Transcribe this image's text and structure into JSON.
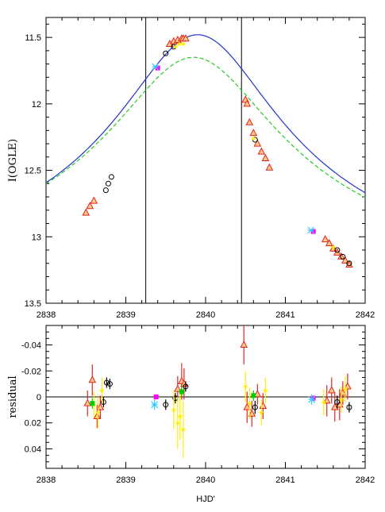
{
  "chart_data": [
    {
      "type": "scatter",
      "ylabel": "I(OGLE)",
      "xlim": [
        2838,
        2842
      ],
      "ylim": [
        13.5,
        11.35
      ],
      "y_inverted": true,
      "xticks": [
        2838,
        2839,
        2840,
        2841,
        2842
      ],
      "xtick_labels": [
        "2838",
        "2839",
        "2840",
        "2841",
        "2842"
      ],
      "yticks": [
        11.5,
        12,
        12.5,
        13,
        13.5
      ],
      "ytick_labels": [
        "11.5",
        "12",
        "12.5",
        "13",
        "13.5"
      ],
      "vertical_lines": [
        2839.25,
        2840.45
      ],
      "curves": [
        {
          "style": "solid",
          "color": "#2233cc",
          "t0": 2839.9,
          "peak": 11.48,
          "width": 0.75,
          "amp": 2.1
        },
        {
          "style": "dashed",
          "color": "#22cc22",
          "t0": 2839.85,
          "peak": 11.65,
          "width": 0.78,
          "amp": 1.88
        }
      ],
      "series": [
        {
          "marker": "triangle",
          "color": "#e52222",
          "x": [
            2838.5,
            2838.55,
            2838.6,
            2839.55,
            2839.6,
            2839.65,
            2839.7,
            2839.72,
            2839.75,
            2840.5,
            2840.52,
            2840.55,
            2840.6,
            2840.65,
            2840.7,
            2840.75,
            2840.8,
            2841.5,
            2841.55,
            2841.6,
            2841.65,
            2841.7,
            2841.75,
            2841.8
          ],
          "y": [
            12.82,
            12.77,
            12.73,
            11.55,
            11.53,
            11.52,
            11.51,
            11.51,
            11.51,
            11.97,
            12.0,
            12.14,
            12.22,
            12.3,
            12.36,
            12.41,
            12.48,
            13.02,
            13.05,
            13.09,
            13.12,
            13.15,
            13.18,
            13.21
          ]
        },
        {
          "marker": "circle",
          "color": "#000000",
          "x": [
            2838.75,
            2838.78,
            2838.82,
            2839.5,
            2839.6,
            2840.62,
            2841.65,
            2841.72,
            2841.8
          ],
          "y": [
            12.65,
            12.6,
            12.55,
            11.62,
            11.57,
            12.27,
            13.1,
            13.15,
            13.2
          ]
        },
        {
          "marker": "star",
          "color": "#ffee00",
          "x": [
            2839.62,
            2839.67,
            2839.72,
            2840.6,
            2841.6
          ],
          "y": [
            11.57,
            11.55,
            11.55,
            12.26,
            13.08
          ]
        },
        {
          "marker": "square",
          "color": "#ff00ff",
          "x": [
            2839.4,
            2841.35
          ],
          "y": [
            11.73,
            12.96
          ]
        },
        {
          "marker": "cross",
          "color": "#33ccff",
          "x": [
            2839.37,
            2841.32
          ],
          "y": [
            11.72,
            12.95
          ]
        }
      ]
    },
    {
      "type": "scatter",
      "ylabel": "residual",
      "xlabel": "HJD'",
      "xlim": [
        2838,
        2842
      ],
      "ylim": [
        0.055,
        -0.055
      ],
      "y_inverted": true,
      "xticks": [
        2838,
        2839,
        2840,
        2841,
        2842
      ],
      "xtick_labels": [
        "2838",
        "2839",
        "2840",
        "2841",
        "2842"
      ],
      "yticks": [
        -0.04,
        -0.02,
        0,
        0.02,
        0.04
      ],
      "ytick_labels": [
        "-0.04",
        "-0.02",
        "0",
        "0.02",
        "0.04"
      ],
      "zero_line": 0,
      "series": [
        {
          "marker": "triangle",
          "color": "#e52222",
          "x": [
            2838.52,
            2838.58,
            2838.64,
            2838.68,
            2839.65,
            2839.7,
            2839.73,
            2840.48,
            2840.52,
            2840.58,
            2840.65,
            2840.72,
            2841.52,
            2841.58,
            2841.62,
            2841.68,
            2841.72,
            2841.78
          ],
          "y": [
            0.005,
            -0.013,
            0.015,
            0.008,
            -0.006,
            -0.012,
            -0.01,
            -0.04,
            0.008,
            0.013,
            -0.002,
            0.007,
            0.003,
            -0.005,
            0.008,
            0.006,
            -0.003,
            -0.008
          ],
          "err": [
            0.01,
            0.012,
            0.009,
            0.009,
            0.01,
            0.014,
            0.012,
            0.015,
            0.012,
            0.01,
            0.008,
            0.01,
            0.012,
            0.01,
            0.011,
            0.012,
            0.009,
            0.01
          ]
        },
        {
          "marker": "circle",
          "color": "#000000",
          "x": [
            2838.72,
            2838.76,
            2838.8,
            2839.5,
            2839.62,
            2839.75,
            2840.62,
            2841.65,
            2841.8
          ],
          "y": [
            0.004,
            -0.011,
            -0.01,
            0.006,
            0.001,
            -0.008,
            0.008,
            0.004,
            0.008
          ],
          "err": [
            0.004,
            0.004,
            0.004,
            0.004,
            0.004,
            0.004,
            0.005,
            0.005,
            0.004
          ]
        },
        {
          "marker": "star",
          "color": "#ffee00",
          "x": [
            2838.6,
            2838.65,
            2838.7,
            2839.6,
            2839.65,
            2839.68,
            2839.72,
            2840.5,
            2840.55,
            2840.7,
            2840.75,
            2841.48,
            2841.7,
            2841.75
          ],
          "y": [
            0.006,
            0.012,
            -0.005,
            0.01,
            0.02,
            0.015,
            0.025,
            -0.008,
            0.005,
            0.012,
            -0.005,
            0.004,
            0.002,
            -0.006
          ],
          "err": [
            0.01,
            0.012,
            0.01,
            0.015,
            0.02,
            0.018,
            0.022,
            0.012,
            0.012,
            0.01,
            0.01,
            0.01,
            0.01,
            0.01
          ]
        },
        {
          "marker": "square",
          "color": "#00cc00",
          "x": [
            2838.58,
            2839.7,
            2840.6
          ],
          "y": [
            0.005,
            -0.004,
            -0.001
          ],
          "err": [
            0.004,
            0.004,
            0.004
          ]
        },
        {
          "marker": "square",
          "color": "#ff00ff",
          "x": [
            2839.38,
            2841.35
          ],
          "y": [
            0,
            0.001
          ],
          "err": [
            0.002,
            0.002
          ]
        },
        {
          "marker": "cross",
          "color": "#33ccff",
          "x": [
            2839.36,
            2841.33
          ],
          "y": [
            0.006,
            0.002
          ],
          "err": [
            0.004,
            0.004
          ]
        }
      ]
    }
  ]
}
